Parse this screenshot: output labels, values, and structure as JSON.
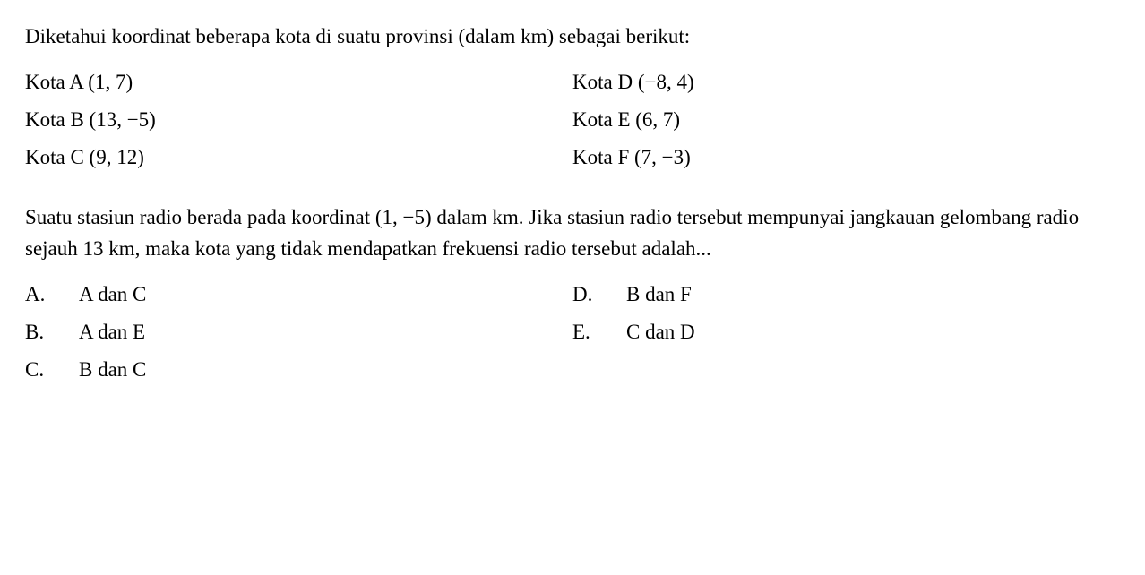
{
  "question": {
    "intro": "Diketahui koordinat beberapa kota di suatu provinsi (dalam km) sebagai berikut:",
    "cities_left": [
      "Kota A (1, 7)",
      "Kota B (13, −5)",
      "Kota C (9, 12)"
    ],
    "cities_right": [
      "Kota D (−8, 4)",
      "Kota E (6, 7)",
      "Kota F (7, −3)"
    ],
    "problem": "Suatu stasiun radio berada pada koordinat (1, −5) dalam km. Jika stasiun radio tersebut mempunyai jangkauan gelombang radio sejauh 13 km, maka kota yang tidak mendapatkan frekuensi radio tersebut adalah...",
    "options_left": [
      {
        "letter": "A.",
        "text": "A dan C"
      },
      {
        "letter": "B.",
        "text": "A dan E"
      },
      {
        "letter": "C.",
        "text": "B dan C"
      }
    ],
    "options_right": [
      {
        "letter": "D.",
        "text": "B dan F"
      },
      {
        "letter": "E.",
        "text": "C dan D"
      }
    ]
  },
  "style": {
    "font_size_pt": 17,
    "text_color": "#000000",
    "background_color": "#ffffff"
  }
}
